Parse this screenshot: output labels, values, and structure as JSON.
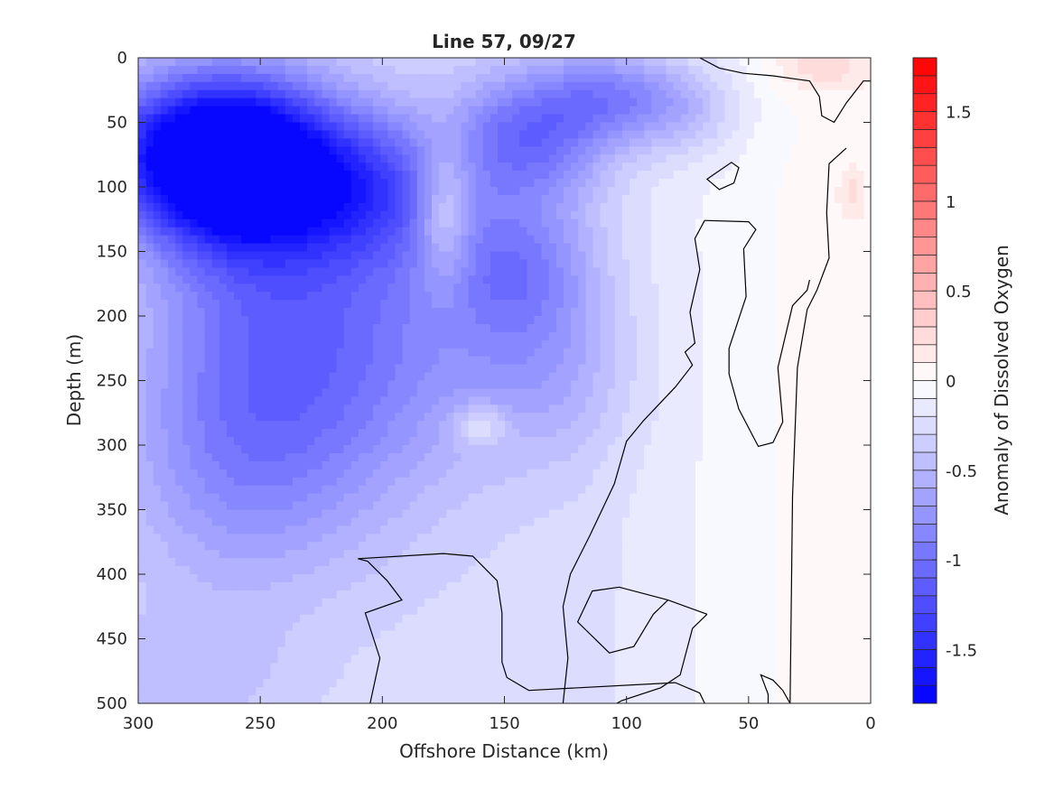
{
  "chart_data": {
    "type": "heatmap",
    "subtype": "filled-contour-section",
    "title": "Line 57, 09/27",
    "xlabel": "Offshore Distance (km)",
    "ylabel": "Depth (m)",
    "xlim": [
      0,
      300
    ],
    "x_reversed": true,
    "x_ticks": [
      300,
      250,
      200,
      150,
      100,
      50,
      0
    ],
    "ylim": [
      0,
      500
    ],
    "y_reversed": true,
    "y_ticks": [
      0,
      50,
      100,
      150,
      200,
      250,
      300,
      350,
      400,
      450,
      500
    ],
    "colorbar": {
      "label": "Anomaly of Dissolved Oxygen",
      "range": [
        -1.8,
        1.8
      ],
      "levels": 36,
      "ticks": [
        -1.5,
        -1,
        -0.5,
        0,
        0.5,
        1,
        1.5
      ],
      "colormap": {
        "low": "#0000ff",
        "mid": "#ffffff",
        "high": "#ff0000"
      }
    },
    "anomaly_features": [
      {
        "x": 260,
        "depth": 82,
        "value": -1.75,
        "sx": 28,
        "sy": 45
      },
      {
        "x": 290,
        "depth": 70,
        "value": -0.6,
        "sx": 30,
        "sy": 40
      },
      {
        "x": 250,
        "depth": 200,
        "value": -0.6,
        "sx": 35,
        "sy": 100
      },
      {
        "x": 260,
        "depth": 320,
        "value": -0.35,
        "sx": 35,
        "sy": 70
      },
      {
        "x": 205,
        "depth": 100,
        "value": -0.7,
        "sx": 25,
        "sy": 40
      },
      {
        "x": 200,
        "depth": 220,
        "value": -0.45,
        "sx": 35,
        "sy": 90
      },
      {
        "x": 140,
        "depth": 60,
        "value": -0.75,
        "sx": 22,
        "sy": 35
      },
      {
        "x": 145,
        "depth": 160,
        "value": -0.55,
        "sx": 22,
        "sy": 40
      },
      {
        "x": 135,
        "depth": 240,
        "value": -0.35,
        "sx": 25,
        "sy": 50
      },
      {
        "x": 105,
        "depth": 30,
        "value": -0.55,
        "sx": 20,
        "sy": 25
      },
      {
        "x": 75,
        "depth": 40,
        "value": -0.3,
        "sx": 18,
        "sy": 25
      },
      {
        "x": 280,
        "depth": 480,
        "value": -0.2,
        "sx": 30,
        "sy": 40
      },
      {
        "x": 175,
        "depth": 120,
        "value": 0.5,
        "sx": 8,
        "sy": 40
      },
      {
        "x": 160,
        "depth": 285,
        "value": 0.35,
        "sx": 8,
        "sy": 12
      },
      {
        "x": 20,
        "depth": 5,
        "value": 0.25,
        "sx": 14,
        "sy": 15
      },
      {
        "x": 8,
        "depth": 105,
        "value": 0.2,
        "sx": 4,
        "sy": 15
      }
    ],
    "background_value": -0.25,
    "nearshore_value": 0.04,
    "bottom_bathymetry": [
      {
        "x": 0,
        "depth": 35
      },
      {
        "x": 7,
        "depth": 80
      },
      {
        "x": 13,
        "depth": 115
      },
      {
        "x": 20,
        "depth": 147
      },
      {
        "x": 25,
        "depth": 195
      },
      {
        "x": 29,
        "depth": 340
      },
      {
        "x": 33,
        "depth": 500
      }
    ],
    "zero_contours": [
      [
        [
          70,
          0
        ],
        [
          62,
          8
        ],
        [
          52,
          12
        ],
        [
          40,
          14
        ],
        [
          25,
          18
        ],
        [
          21,
          30
        ],
        [
          20,
          45
        ],
        [
          15,
          50
        ],
        [
          10,
          35
        ],
        [
          3,
          18
        ],
        [
          0,
          18
        ]
      ],
      [
        [
          10,
          70
        ],
        [
          17,
          82
        ],
        [
          18,
          120
        ],
        [
          17,
          155
        ],
        [
          22,
          180
        ],
        [
          26,
          195
        ],
        [
          30,
          240
        ],
        [
          32,
          340
        ],
        [
          33,
          500
        ]
      ],
      [
        [
          64,
          90
        ],
        [
          57,
          81
        ],
        [
          54,
          85
        ],
        [
          56,
          97
        ],
        [
          62,
          102
        ],
        [
          67,
          94
        ],
        [
          64,
          90
        ]
      ],
      [
        [
          68,
          126
        ],
        [
          50,
          127
        ],
        [
          47,
          133
        ],
        [
          52,
          148
        ],
        [
          51,
          185
        ],
        [
          58,
          225
        ],
        [
          58,
          245
        ],
        [
          54,
          272
        ],
        [
          46,
          301
        ],
        [
          40,
          298
        ],
        [
          36,
          282
        ],
        [
          38,
          240
        ],
        [
          32,
          192
        ],
        [
          26,
          180
        ],
        [
          25,
          172
        ]
      ],
      [
        [
          68,
          126
        ],
        [
          72,
          140
        ],
        [
          70,
          164
        ],
        [
          74,
          197
        ],
        [
          72,
          221
        ],
        [
          76,
          228
        ],
        [
          73,
          238
        ],
        [
          80,
          255
        ],
        [
          93,
          281
        ],
        [
          100,
          297
        ],
        [
          105,
          330
        ],
        [
          115,
          370
        ],
        [
          123,
          400
        ],
        [
          126,
          425
        ],
        [
          124,
          465
        ],
        [
          126,
          500
        ]
      ],
      [
        [
          205,
          500
        ],
        [
          201,
          465
        ],
        [
          207,
          430
        ],
        [
          192,
          420
        ],
        [
          198,
          405
        ],
        [
          206,
          390
        ],
        [
          210,
          388
        ],
        [
          175,
          384
        ],
        [
          163,
          386
        ],
        [
          153,
          405
        ],
        [
          151,
          430
        ],
        [
          151,
          468
        ],
        [
          149,
          480
        ],
        [
          140,
          490
        ],
        [
          80,
          484
        ],
        [
          70,
          492
        ],
        [
          68,
          500
        ]
      ],
      [
        [
          67,
          431
        ],
        [
          73,
          442
        ],
        [
          78,
          478
        ],
        [
          86,
          488
        ],
        [
          102,
          498
        ],
        [
          104,
          500
        ]
      ],
      [
        [
          67,
          431
        ],
        [
          83,
          420
        ],
        [
          103,
          410
        ],
        [
          114,
          413
        ],
        [
          120,
          437
        ],
        [
          107,
          461
        ],
        [
          97,
          456
        ],
        [
          89,
          431
        ],
        [
          83,
          420
        ]
      ],
      [
        [
          33,
          500
        ],
        [
          36,
          490
        ],
        [
          40,
          482
        ],
        [
          45,
          478
        ],
        [
          42,
          493
        ],
        [
          42,
          500
        ]
      ]
    ]
  }
}
